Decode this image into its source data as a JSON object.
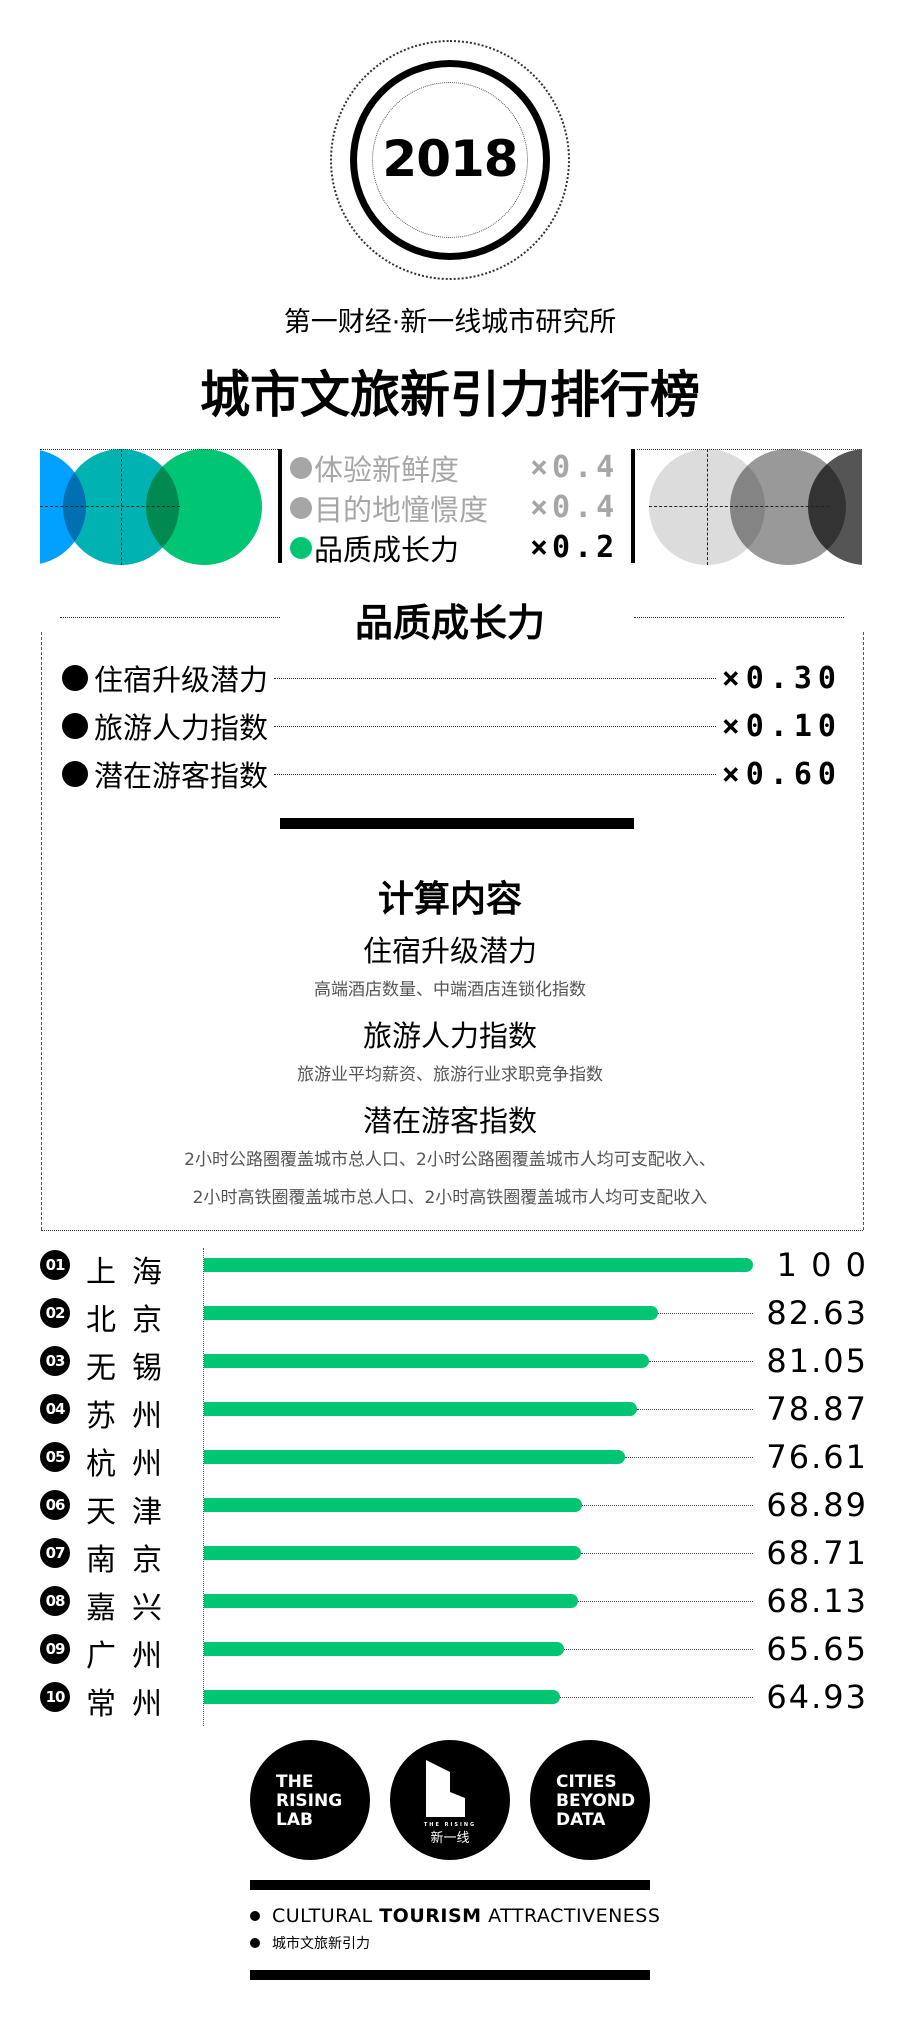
{
  "header": {
    "year": "2018",
    "subtitle": "第一财经·新一线城市研究所",
    "title": "城市文旅新引力排行榜"
  },
  "weights": [
    {
      "label": "体验新鲜度",
      "weight": "×0.4",
      "color": "#a6a6a6",
      "active": false
    },
    {
      "label": "目的地憧憬度",
      "weight": "×0.4",
      "color": "#a6a6a6",
      "active": false
    },
    {
      "label": "品质成长力",
      "weight": "×0.2",
      "color": "#00c573",
      "active": true
    }
  ],
  "section": {
    "title": "品质成长力",
    "items": [
      {
        "label": "住宿升级潜力",
        "weight": "×0.30"
      },
      {
        "label": "旅游人力指数",
        "weight": "×0.10"
      },
      {
        "label": "潜在游客指数",
        "weight": "×0.60"
      }
    ]
  },
  "calc": {
    "title": "计算内容",
    "blocks": [
      {
        "name": "住宿升级潜力",
        "desc": [
          "高端酒店数量、中端酒店连锁化指数"
        ]
      },
      {
        "name": "旅游人力指数",
        "desc": [
          "旅游业平均薪资、旅游行业求职竞争指数"
        ]
      },
      {
        "name": "潜在游客指数",
        "desc": [
          "2小时公路圈覆盖城市总人口、2小时公路圈覆盖城市人均可支配收入、",
          "2小时高铁圈覆盖城市总人口、2小时高铁圈覆盖城市人均可支配收入"
        ]
      }
    ]
  },
  "chart_data": {
    "type": "bar",
    "orientation": "horizontal",
    "bar_color": "#00c573",
    "xlim": [
      0,
      100
    ],
    "ranks": [
      "01",
      "02",
      "03",
      "04",
      "05",
      "06",
      "07",
      "08",
      "09",
      "10"
    ],
    "categories": [
      "上海",
      "北京",
      "无锡",
      "苏州",
      "杭州",
      "天津",
      "南京",
      "嘉兴",
      "广州",
      "常州"
    ],
    "values": [
      100,
      82.63,
      81.05,
      78.87,
      76.61,
      68.89,
      68.71,
      68.13,
      65.65,
      64.93
    ],
    "labels": [
      "1 0 0",
      "82.63",
      "81.05",
      "78.87",
      "76.61",
      "68.89",
      "68.71",
      "68.13",
      "65.65",
      "64.93"
    ]
  },
  "footer": {
    "logo1": [
      "THE",
      "RISING",
      "LAB"
    ],
    "logo2": "新一线",
    "logo2_small": "THE RISING",
    "logo3": [
      "CITIES",
      "BEYOND",
      "DATA"
    ],
    "en_pre": "CULTURAL ",
    "en_bold": "TOURISM",
    "en_post": " ATTRACTIVENESS",
    "cn": "城市文旅新引力"
  }
}
